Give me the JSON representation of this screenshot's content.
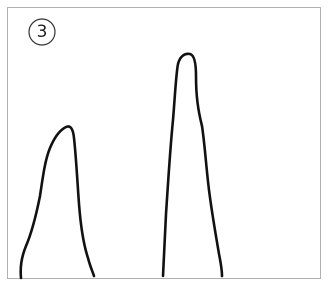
{
  "label": "3"
}
